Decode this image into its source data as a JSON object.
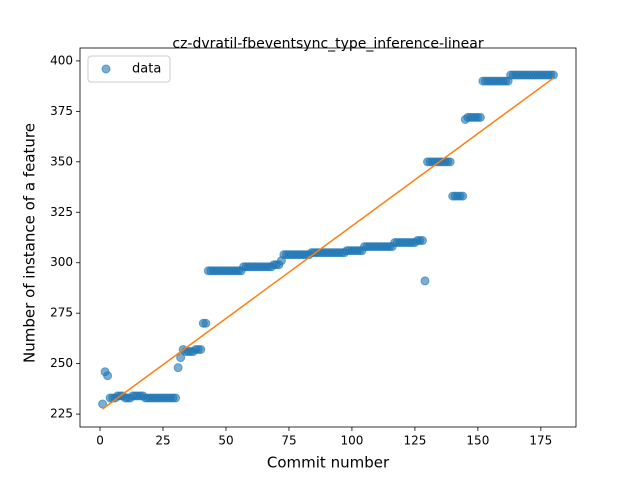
{
  "chart_data": {
    "type": "scatter",
    "title": "cz-dvratil-fbeventsync_type_inference-linear",
    "x_label": "Commit number",
    "y_label": "Number of instance of a feature",
    "legend": "upper left",
    "xlim": [
      -7.95,
      188.95
    ],
    "ylim": [
      218.6,
      406.4
    ],
    "xticks": [
      0,
      25,
      50,
      75,
      100,
      125,
      150,
      175
    ],
    "yticks": [
      225,
      250,
      275,
      300,
      325,
      350,
      375,
      400
    ],
    "series": [
      {
        "name": "data",
        "color": "#1f77b4",
        "x": [
          1,
          2,
          3,
          4,
          5,
          6,
          7,
          8,
          9,
          10,
          11,
          12,
          13,
          14,
          15,
          16,
          17,
          18,
          19,
          20,
          21,
          22,
          23,
          24,
          25,
          26,
          27,
          28,
          29,
          30,
          31,
          32,
          33,
          34,
          35,
          36,
          37,
          38,
          39,
          40,
          41,
          42,
          43,
          44,
          45,
          46,
          47,
          48,
          49,
          50,
          51,
          52,
          53,
          54,
          55,
          56,
          57,
          58,
          59,
          60,
          61,
          62,
          63,
          64,
          65,
          66,
          67,
          68,
          69,
          70,
          71,
          72,
          73,
          74,
          75,
          76,
          77,
          78,
          79,
          80,
          81,
          82,
          83,
          84,
          85,
          86,
          87,
          88,
          89,
          90,
          91,
          92,
          93,
          94,
          95,
          96,
          97,
          98,
          99,
          100,
          101,
          102,
          103,
          104,
          105,
          106,
          107,
          108,
          109,
          110,
          111,
          112,
          113,
          114,
          115,
          116,
          117,
          118,
          119,
          120,
          121,
          122,
          123,
          124,
          125,
          126,
          127,
          128,
          129,
          130,
          131,
          132,
          133,
          134,
          135,
          136,
          137,
          138,
          139,
          140,
          141,
          142,
          143,
          144,
          145,
          146,
          147,
          148,
          149,
          150,
          151,
          152,
          153,
          154,
          155,
          156,
          157,
          158,
          159,
          160,
          161,
          162,
          163,
          164,
          165,
          166,
          167,
          168,
          169,
          170,
          171,
          172,
          173,
          174,
          175,
          176,
          177,
          178,
          179,
          180
        ],
        "values": [
          230,
          246,
          244,
          233,
          233,
          233,
          234,
          234,
          234,
          233,
          233,
          233,
          234,
          234,
          234,
          234,
          234,
          233,
          233,
          233,
          233,
          233,
          233,
          233,
          233,
          233,
          233,
          233,
          233,
          233,
          248,
          253,
          257,
          256,
          256,
          256,
          256,
          257,
          257,
          257,
          270,
          270,
          296,
          296,
          296,
          296,
          296,
          296,
          296,
          296,
          296,
          296,
          296,
          296,
          296,
          296,
          298,
          298,
          298,
          298,
          298,
          298,
          298,
          298,
          298,
          298,
          298,
          298,
          299,
          299,
          299,
          301,
          304,
          304,
          304,
          304,
          304,
          304,
          304,
          304,
          304,
          304,
          304,
          305,
          305,
          305,
          305,
          305,
          305,
          305,
          305,
          305,
          305,
          305,
          305,
          305,
          305,
          306,
          306,
          306,
          306,
          306,
          306,
          306,
          308,
          308,
          308,
          308,
          308,
          308,
          308,
          308,
          308,
          308,
          308,
          308,
          310,
          310,
          310,
          310,
          310,
          310,
          310,
          310,
          310,
          311,
          311,
          311,
          291,
          350,
          350,
          350,
          350,
          350,
          350,
          350,
          350,
          350,
          350,
          333,
          333,
          333,
          333,
          333,
          371,
          372,
          372,
          372,
          372,
          372,
          372,
          390,
          390,
          390,
          390,
          390,
          390,
          390,
          390,
          390,
          390,
          390,
          393,
          393,
          393,
          393,
          393,
          393,
          393,
          393,
          393,
          393,
          393,
          393,
          393,
          393,
          393,
          393,
          393,
          393
        ]
      }
    ],
    "fit": {
      "color": "#ff7f0e",
      "x": [
        1,
        180
      ],
      "values": [
        227.5,
        391.5
      ]
    }
  }
}
